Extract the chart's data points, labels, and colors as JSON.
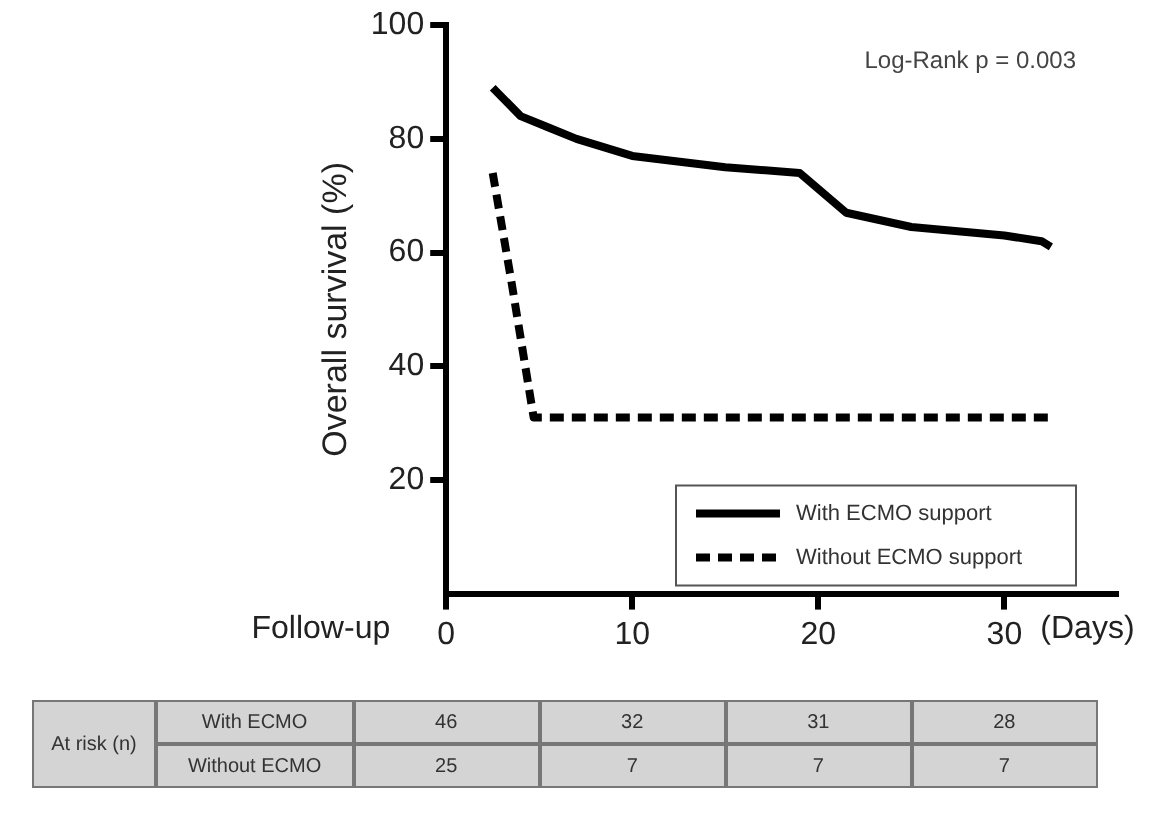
{
  "chart_data": {
    "type": "line",
    "xlabel": "Follow-up",
    "ylabel": "Overall survival (%)",
    "xlim": [
      0,
      36
    ],
    "xticks": [
      0,
      10,
      20,
      30
    ],
    "ylim": [
      0,
      100
    ],
    "yticks": [
      20,
      40,
      60,
      80,
      100
    ],
    "grid": false,
    "legend": "bottom right",
    "marker": "none",
    "series": [
      {
        "name": "With ECMO support",
        "color": "#000000",
        "line_style": "solid",
        "x": [
          2.5,
          4,
          5.5,
          7,
          10,
          15,
          19,
          21.5,
          25,
          30,
          32,
          32.5
        ],
        "values": [
          89,
          84,
          82,
          80,
          77,
          75,
          74,
          67,
          64.5,
          63,
          62,
          61
        ]
      },
      {
        "name": "Without ECMO support",
        "color": "#000000",
        "line_style": "dashed",
        "x": [
          2.5,
          3.5,
          4.7,
          5.5,
          32.5
        ],
        "values": [
          74,
          55,
          31,
          31,
          31
        ]
      }
    ],
    "annotations": [
      "Log-Rank p = 0.003",
      "(Days)",
      "At risk (n)",
      "With ECMO",
      "46",
      "32",
      "31",
      "28",
      "Without ECMO",
      "25",
      "7",
      "7",
      "7"
    ]
  }
}
